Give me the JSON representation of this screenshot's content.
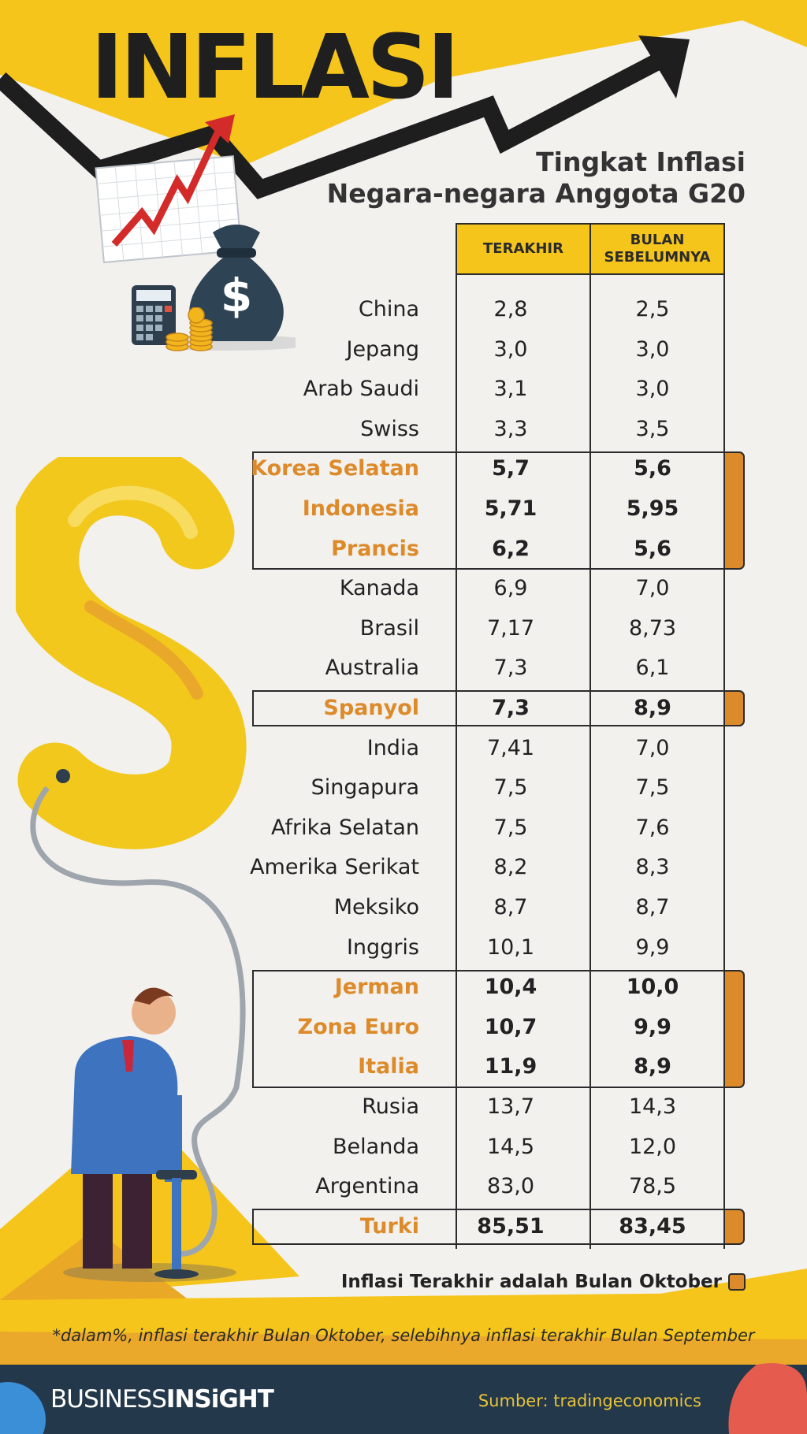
{
  "header": {
    "title": "INFLASI",
    "subtitle_line1": "Tingkat Inflasi",
    "subtitle_line2": "Negara-negara Anggota G20"
  },
  "table": {
    "col_latest": "TERAKHIR",
    "col_prev_line1": "BULAN",
    "col_prev_line2": "SEBELUMNYA",
    "rows": [
      {
        "name": "China",
        "latest": "2,8",
        "previous": "2,5",
        "highlight": false
      },
      {
        "name": "Jepang",
        "latest": "3,0",
        "previous": "3,0",
        "highlight": false
      },
      {
        "name": "Arab Saudi",
        "latest": "3,1",
        "previous": "3,0",
        "highlight": false
      },
      {
        "name": "Swiss",
        "latest": "3,3",
        "previous": "3,5",
        "highlight": false
      },
      {
        "name": "Korea Selatan",
        "latest": "5,7",
        "previous": "5,6",
        "highlight": true
      },
      {
        "name": "Indonesia",
        "latest": "5,71",
        "previous": "5,95",
        "highlight": true
      },
      {
        "name": "Prancis",
        "latest": "6,2",
        "previous": "5,6",
        "highlight": true
      },
      {
        "name": "Kanada",
        "latest": "6,9",
        "previous": "7,0",
        "highlight": false
      },
      {
        "name": "Brasil",
        "latest": "7,17",
        "previous": "8,73",
        "highlight": false
      },
      {
        "name": "Australia",
        "latest": "7,3",
        "previous": "6,1",
        "highlight": false
      },
      {
        "name": "Spanyol",
        "latest": "7,3",
        "previous": "8,9",
        "highlight": true
      },
      {
        "name": "India",
        "latest": "7,41",
        "previous": "7,0",
        "highlight": false
      },
      {
        "name": "Singapura",
        "latest": "7,5",
        "previous": "7,5",
        "highlight": false
      },
      {
        "name": "Afrika Selatan",
        "latest": "7,5",
        "previous": "7,6",
        "highlight": false
      },
      {
        "name": "Amerika Serikat",
        "latest": "8,2",
        "previous": "8,3",
        "highlight": false
      },
      {
        "name": "Meksiko",
        "latest": "8,7",
        "previous": "8,7",
        "highlight": false
      },
      {
        "name": "Inggris",
        "latest": "10,1",
        "previous": "9,9",
        "highlight": false
      },
      {
        "name": "Jerman",
        "latest": "10,4",
        "previous": "10,0",
        "highlight": true
      },
      {
        "name": "Zona Euro",
        "latest": "10,7",
        "previous": "9,9",
        "highlight": true
      },
      {
        "name": "Italia",
        "latest": "11,9",
        "previous": "8,9",
        "highlight": true
      },
      {
        "name": "Rusia",
        "latest": "13,7",
        "previous": "14,3",
        "highlight": false
      },
      {
        "name": "Belanda",
        "latest": "14,5",
        "previous": "12,0",
        "highlight": false
      },
      {
        "name": "Argentina",
        "latest": "83,0",
        "previous": "78,5",
        "highlight": false
      },
      {
        "name": "Turki",
        "latest": "85,51",
        "previous": "83,45",
        "highlight": true
      }
    ]
  },
  "legend": {
    "label": "Inflasi Terakhir adalah Bulan Oktober"
  },
  "footnote": "*dalam%, inflasi terakhir Bulan Oktober, selebihnya inflasi terakhir Bulan September",
  "footer": {
    "brand_light": "BUSINESS",
    "brand_bold": "INSiGHT",
    "source": "Sumber: tradingeconomics"
  },
  "colors": {
    "yellow": "#f5c51c",
    "highlight_orange": "#dd8a2a",
    "footer_navy": "#23384a",
    "source_text": "#e8c23a"
  },
  "icons": [
    "trend-arrow-icon",
    "growth-chart-icon",
    "money-bag-icon",
    "calculator-icon",
    "coin-stack-icon",
    "dollar-balloon-illustration",
    "businessman-pump-illustration"
  ]
}
